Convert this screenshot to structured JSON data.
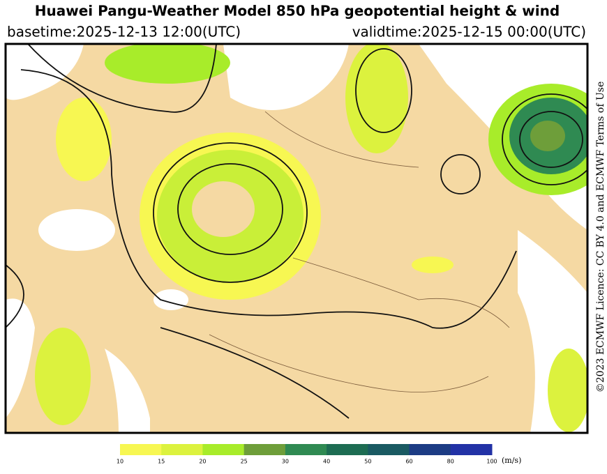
{
  "header": {
    "title": "Huawei Pangu-Weather Model 850 hPa geopotential height & wind",
    "basetime": "basetime:2025-12-13 12:00(UTC)",
    "validtime": "validtime:2025-12-15 00:00(UTC)"
  },
  "credit": "©2023 ECMWF Licence: CC BY 4.0 and ECMWF Terms of Use",
  "colorbar": {
    "ticks": [
      10,
      15,
      20,
      25,
      30,
      40,
      50,
      60,
      80,
      100
    ],
    "colors": [
      "#f7f752",
      "#dcf23e",
      "#a8ec2a",
      "#6e9e3a",
      "#2f8a52",
      "#1d6c52",
      "#1a5a62",
      "#1c3c84",
      "#2232a6"
    ],
    "unit": "(m/s)"
  }
}
